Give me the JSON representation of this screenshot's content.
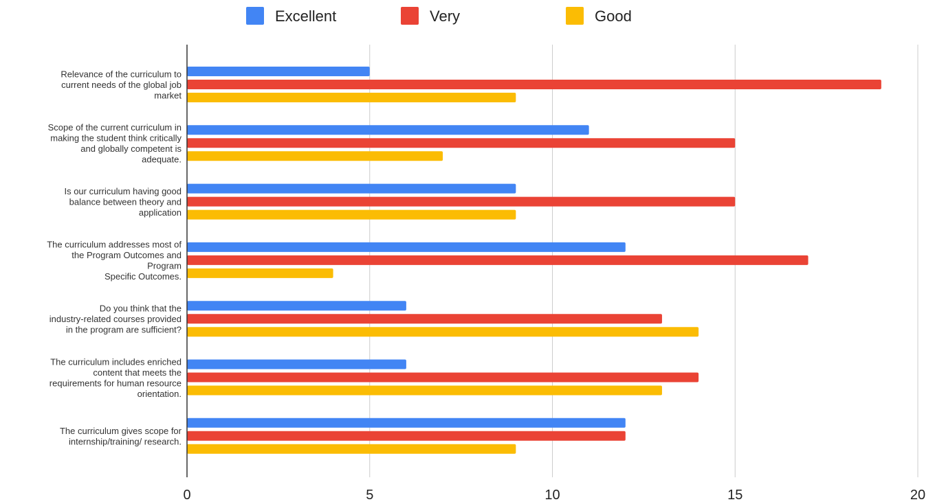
{
  "chart_data": {
    "type": "bar",
    "orientation": "horizontal",
    "xlim": [
      0,
      20
    ],
    "xticks": [
      0,
      5,
      10,
      15,
      20
    ],
    "grid": true,
    "legend_position": "top",
    "categories": [
      [
        "Relevance of the curriculum to",
        "current needs of the global job",
        "market"
      ],
      [
        "Scope of the current curriculum in",
        "making the student think critically",
        "and globally competent is",
        "adequate."
      ],
      [
        "Is our curriculum having good",
        "balance between theory and",
        "application"
      ],
      [
        "The curriculum addresses most of",
        "the Program Outcomes and",
        "Program",
        "Specific Outcomes."
      ],
      [
        "Do you think that the",
        "industry-related courses provided",
        "in the program are sufficient?"
      ],
      [
        "The curriculum includes enriched",
        "content that meets the",
        "requirements for human resource",
        "orientation."
      ],
      [
        "The curriculum gives scope for",
        "internship/training/ research."
      ]
    ],
    "series": [
      {
        "name": "Excellent",
        "color": "#4285f4",
        "values": [
          5,
          11,
          9,
          12,
          6,
          6,
          12
        ]
      },
      {
        "name": "Very",
        "color": "#ea4335",
        "values": [
          19,
          15,
          15,
          17,
          13,
          14,
          12
        ]
      },
      {
        "name": "Good",
        "color": "#fbbc04",
        "values": [
          9,
          7,
          9,
          4,
          14,
          13,
          9
        ]
      }
    ],
    "gridline_color": "#cccccc",
    "axis_color": "#333333"
  }
}
